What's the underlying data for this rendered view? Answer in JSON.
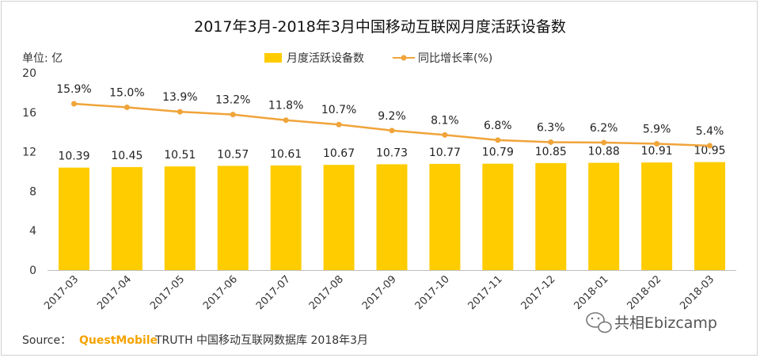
{
  "colors": {
    "bar": "#FFCC00",
    "line": "#F0A43A",
    "axis": "#BFBFBF",
    "brand": "#F5A300"
  },
  "source": {
    "prefix": "Source：",
    "brand": "QuestMobile",
    "rest": "TRUTH 中国移动互联网数据库 2018年3月"
  },
  "watermark": {
    "icon": "wechat-icon",
    "text": "共相Ebizcamp"
  },
  "chart_data": {
    "type": "bar",
    "title": "2017年3月-2018年3月中国移动互联网月度活跃设备数",
    "unit_label": "单位: 亿",
    "categories": [
      "2017-03",
      "2017-04",
      "2017-05",
      "2017-06",
      "2017-07",
      "2017-08",
      "2017-09",
      "2017-10",
      "2017-11",
      "2017-12",
      "2018-01",
      "2018-02",
      "2018-03"
    ],
    "ylim": [
      0,
      20
    ],
    "yticks": [
      "0",
      "4",
      "8",
      "12",
      "16",
      "20"
    ],
    "legend_position": "top-center",
    "grid": false,
    "series": [
      {
        "name": "月度活跃设备数",
        "type": "bar",
        "values": [
          10.39,
          10.45,
          10.51,
          10.57,
          10.61,
          10.67,
          10.73,
          10.77,
          10.79,
          10.85,
          10.88,
          10.91,
          10.95
        ],
        "labels": [
          "10.39",
          "10.45",
          "10.51",
          "10.57",
          "10.61",
          "10.67",
          "10.73",
          "10.77",
          "10.79",
          "10.85",
          "10.88",
          "10.91",
          "10.95"
        ]
      },
      {
        "name": "同比增长率(%)",
        "type": "line",
        "values": [
          15.9,
          15.0,
          13.9,
          13.2,
          11.8,
          10.7,
          9.2,
          8.1,
          6.8,
          6.3,
          6.2,
          5.9,
          5.4
        ],
        "labels": [
          "15.9%",
          "15.0%",
          "13.9%",
          "13.2%",
          "11.8%",
          "10.7%",
          "9.2%",
          "8.1%",
          "6.8%",
          "6.3%",
          "6.2%",
          "5.9%",
          "5.4%"
        ]
      }
    ]
  }
}
